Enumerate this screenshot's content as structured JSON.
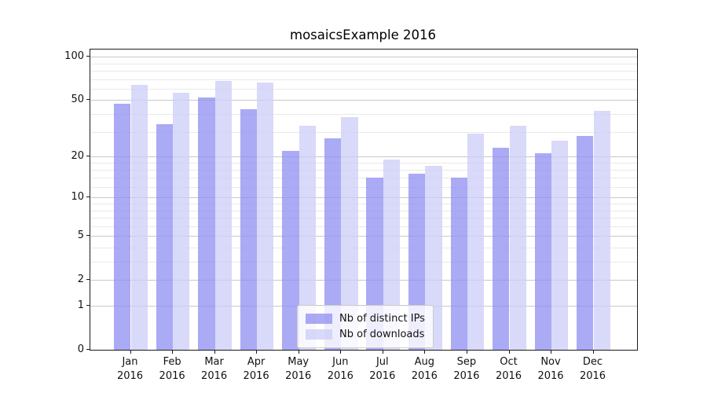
{
  "title": "mosaicsExample 2016",
  "chart_data": {
    "type": "bar",
    "title": "mosaicsExample 2016",
    "yscale": "log-like (plots log10(1+y), 0 at baseline)",
    "categories": [
      "Jan",
      "Feb",
      "Mar",
      "Apr",
      "May",
      "Jun",
      "Jul",
      "Aug",
      "Sep",
      "Oct",
      "Nov",
      "Dec"
    ],
    "x_year": "2016",
    "series": [
      {
        "name": "Nb of distinct IPs",
        "color": "#8e8ef2",
        "alpha": 0.75,
        "values": [
          47,
          34,
          52,
          43,
          22,
          27,
          14,
          15,
          14,
          23,
          21,
          28
        ]
      },
      {
        "name": "Nb of downloads",
        "color": "#ccccf7",
        "alpha": 0.75,
        "values": [
          64,
          56,
          68,
          66,
          33,
          38,
          19,
          17,
          29,
          33,
          26,
          42
        ]
      }
    ],
    "y_major_ticks": [
      0,
      1,
      2,
      5,
      10,
      20,
      50,
      100
    ],
    "y_minor_ticks": [
      3,
      4,
      6,
      7,
      8,
      9,
      12,
      14,
      16,
      18,
      30,
      40,
      60,
      70,
      80,
      90
    ],
    "ylim": [
      0,
      112
    ],
    "xlabel": "",
    "ylabel": "",
    "grid": "on",
    "legend_position": "lower center"
  },
  "colors": {
    "major_grid": "#c9c9c9",
    "minor_grid": "#e9e9e9",
    "axis": "#1a1a1a",
    "text": "#111111",
    "legend_border": "#cccccc"
  }
}
